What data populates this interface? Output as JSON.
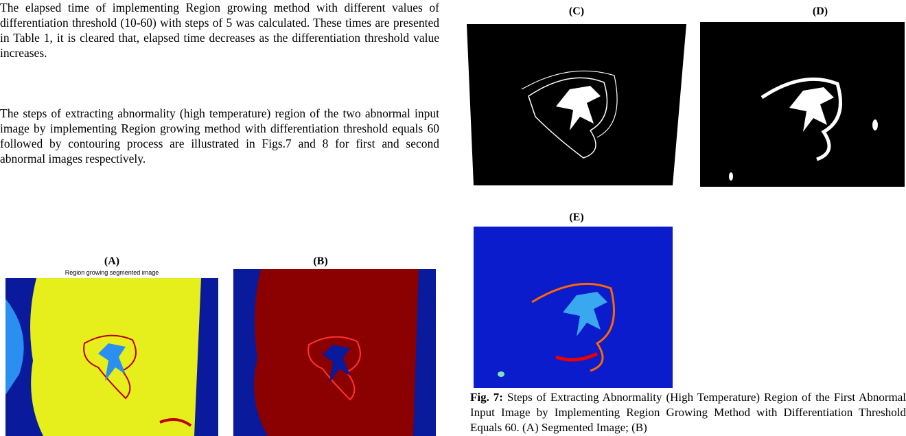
{
  "paragraphs": [
    "The elapsed time of implementing Region growing method with different values of differentiation threshold (10-60) with steps of 5 was calculated. These times are presented in Table 1, it is cleared that, elapsed time decreases as the differentiation threshold value increases.",
    "The steps of extracting abnormality (high temperature) region of the two abnormal input image by implementing Region growing method with differentiation threshold equals 60 followed by contouring process are illustrated in Figs.7 and 8 for first and second abnormal images respectively."
  ],
  "figure": {
    "panels": [
      {
        "label": "(A)",
        "title": "Region growing segmented image"
      },
      {
        "label": "(B)"
      },
      {
        "label": "(C)"
      },
      {
        "label": "(D)"
      },
      {
        "label": "(E)"
      }
    ],
    "caption_label": "Fig. 7:",
    "caption_text": "Steps of Extracting Abnormality (High Temperature) Region of the First Abnormal Input Image by Implementing Region Growing Method with Differentiation Threshold Equals 60. (A) Segmented Image; (B)"
  }
}
